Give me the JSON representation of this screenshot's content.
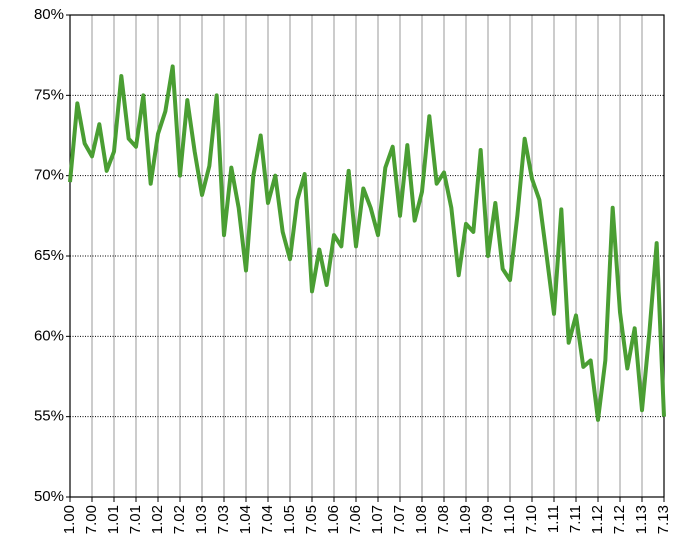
{
  "chart_data": {
    "type": "line",
    "categories": [
      "1.00",
      null,
      null,
      "7.00",
      null,
      null,
      "1.01",
      null,
      null,
      "7.01",
      null,
      null,
      "1.02",
      null,
      null,
      "7.02",
      null,
      null,
      "1.03",
      null,
      null,
      "7.03",
      null,
      null,
      "1.04",
      null,
      null,
      "7.04",
      null,
      null,
      "1.05",
      null,
      null,
      "7.05",
      null,
      null,
      "1.06",
      null,
      null,
      "7.06",
      null,
      null,
      "1.07",
      null,
      null,
      "7.07",
      null,
      null,
      "1.08",
      null,
      null,
      "7.08",
      null,
      null,
      "1.09",
      null,
      null,
      "7.09",
      null,
      null,
      "1.10",
      null,
      null,
      "7.10",
      null,
      null,
      "1.11",
      null,
      null,
      "7.11",
      null,
      null,
      "1.12",
      null,
      null,
      "7.12",
      null,
      null,
      "1.13",
      null,
      null,
      "7.13"
    ],
    "series": [
      {
        "color": "#4a9e33",
        "values": [
          69.6,
          74.5,
          72,
          71.2,
          73.2,
          70.3,
          71.5,
          76.2,
          72.3,
          71.8,
          75,
          69.5,
          72.6,
          74,
          76.8,
          70,
          74.7,
          71.5,
          68.8,
          70.6,
          75,
          66.3,
          70.5,
          68,
          64.1,
          70,
          72.5,
          68.3,
          70,
          66.5,
          64.8,
          68.5,
          70.1,
          62.8,
          65.4,
          63.2,
          66.3,
          65.6,
          70.3,
          65.6,
          69.2,
          68,
          66.3,
          70.5,
          71.8,
          67.5,
          71.9,
          67.2,
          69,
          73.7,
          69.5,
          70.2,
          68,
          63.8,
          67,
          66.5,
          71.6,
          65,
          68.3,
          64.2,
          63.5,
          67.5,
          72.3,
          69.8,
          68.5,
          65,
          61.4,
          67.9,
          59.6,
          61.3,
          58.1,
          58.5,
          54.8,
          58.5,
          68,
          61.5,
          58,
          60.5,
          55.4,
          60.2,
          65.8,
          55
        ]
      }
    ],
    "ylim": [
      50,
      80
    ],
    "yticks": [
      {
        "value": 50,
        "label": "50%"
      },
      {
        "value": 55,
        "label": "55%"
      },
      {
        "value": 60,
        "label": "60%"
      },
      {
        "value": 65,
        "label": "65%"
      },
      {
        "value": 70,
        "label": "70%"
      },
      {
        "value": 75,
        "label": "75%"
      },
      {
        "value": 80,
        "label": "80%"
      }
    ],
    "grid": true
  }
}
